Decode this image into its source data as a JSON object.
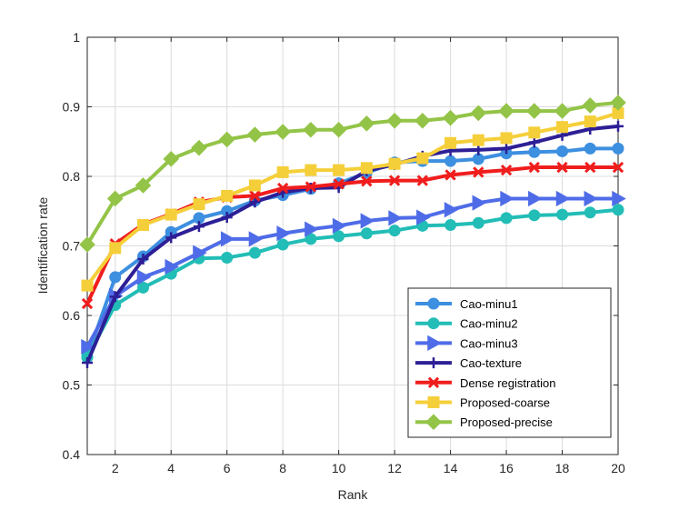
{
  "chart_data": {
    "type": "line",
    "title": "",
    "xlabel": "Rank",
    "ylabel": "Identification rate",
    "xlim": [
      1,
      20
    ],
    "ylim": [
      0.4,
      1
    ],
    "xticks": [
      2,
      4,
      6,
      8,
      10,
      12,
      14,
      16,
      18,
      20
    ],
    "yticks": [
      0.4,
      0.5,
      0.6,
      0.7,
      0.8,
      0.9,
      1
    ],
    "grid": true,
    "legend_position": "bottom-right",
    "x": [
      1,
      2,
      3,
      4,
      5,
      6,
      7,
      8,
      9,
      10,
      11,
      12,
      13,
      14,
      15,
      16,
      17,
      18,
      19,
      20
    ],
    "series": [
      {
        "name": "Cao-minu1",
        "color": "#3d8fe0",
        "marker": "circle",
        "values": [
          0.54,
          0.655,
          0.685,
          0.72,
          0.74,
          0.75,
          0.765,
          0.773,
          0.782,
          0.79,
          0.805,
          0.82,
          0.822,
          0.822,
          0.825,
          0.833,
          0.835,
          0.836,
          0.84,
          0.84
        ]
      },
      {
        "name": "Cao-minu2",
        "color": "#22bdb6",
        "marker": "circle",
        "values": [
          0.54,
          0.615,
          0.64,
          0.66,
          0.682,
          0.683,
          0.69,
          0.702,
          0.71,
          0.714,
          0.718,
          0.722,
          0.729,
          0.73,
          0.733,
          0.74,
          0.744,
          0.745,
          0.748,
          0.752
        ]
      },
      {
        "name": "Cao-minu3",
        "color": "#4f6ce8",
        "marker": "triangle-right",
        "values": [
          0.555,
          0.628,
          0.655,
          0.67,
          0.69,
          0.71,
          0.71,
          0.718,
          0.724,
          0.729,
          0.736,
          0.74,
          0.741,
          0.752,
          0.762,
          0.768,
          0.768,
          0.768,
          0.768,
          0.768
        ]
      },
      {
        "name": "Cao-texture",
        "color": "#2d1f96",
        "marker": "plus",
        "values": [
          0.532,
          0.627,
          0.681,
          0.712,
          0.728,
          0.741,
          0.763,
          0.777,
          0.783,
          0.784,
          0.808,
          0.817,
          0.829,
          0.837,
          0.838,
          0.84,
          0.849,
          0.859,
          0.868,
          0.872
        ]
      },
      {
        "name": "Dense registration",
        "color": "#f01d1d",
        "marker": "x",
        "values": [
          0.617,
          0.703,
          0.731,
          0.746,
          0.763,
          0.77,
          0.772,
          0.783,
          0.785,
          0.789,
          0.793,
          0.794,
          0.794,
          0.802,
          0.806,
          0.809,
          0.813,
          0.813,
          0.813,
          0.813
        ]
      },
      {
        "name": "Proposed-coarse",
        "color": "#f5cf3a",
        "marker": "square",
        "values": [
          0.643,
          0.697,
          0.73,
          0.745,
          0.76,
          0.772,
          0.787,
          0.806,
          0.809,
          0.809,
          0.812,
          0.818,
          0.826,
          0.848,
          0.852,
          0.855,
          0.863,
          0.871,
          0.879,
          0.891
        ]
      },
      {
        "name": "Proposed-precise",
        "color": "#93c447",
        "marker": "diamond",
        "values": [
          0.702,
          0.768,
          0.787,
          0.825,
          0.841,
          0.853,
          0.86,
          0.864,
          0.867,
          0.867,
          0.876,
          0.88,
          0.88,
          0.884,
          0.891,
          0.894,
          0.894,
          0.894,
          0.902,
          0.906
        ]
      }
    ]
  }
}
